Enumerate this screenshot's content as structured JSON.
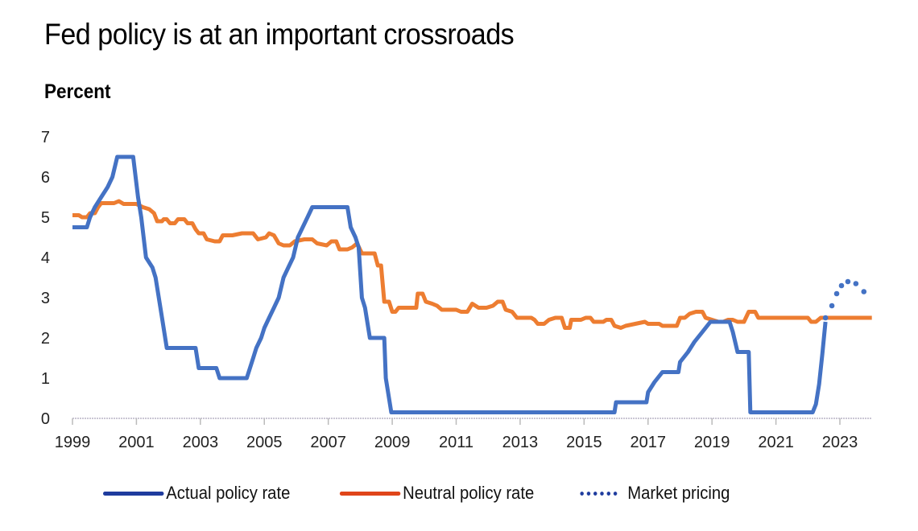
{
  "chart_data": {
    "type": "line",
    "title": "Fed policy is at an important crossroads",
    "ylabel": "Percent",
    "xlabel": "",
    "xlim": [
      1999,
      2024
    ],
    "ylim": [
      0,
      7
    ],
    "y_ticks": [
      "0",
      "1",
      "2",
      "3",
      "4",
      "5",
      "6",
      "7"
    ],
    "x_ticks": [
      "1999",
      "2001",
      "2003",
      "2005",
      "2007",
      "2009",
      "2011",
      "2013",
      "2015",
      "2017",
      "2019",
      "2021",
      "2023"
    ],
    "grid": false,
    "legend_position": "bottom",
    "series": [
      {
        "name": "Actual policy rate",
        "color": "#4472c4",
        "style": "solid",
        "points": [
          [
            1999.0,
            4.75
          ],
          [
            1999.45,
            4.75
          ],
          [
            1999.55,
            5.0
          ],
          [
            1999.7,
            5.25
          ],
          [
            1999.9,
            5.5
          ],
          [
            2000.1,
            5.75
          ],
          [
            2000.25,
            6.0
          ],
          [
            2000.4,
            6.5
          ],
          [
            2000.9,
            6.5
          ],
          [
            2001.05,
            5.5
          ],
          [
            2001.15,
            5.0
          ],
          [
            2001.3,
            4.0
          ],
          [
            2001.5,
            3.75
          ],
          [
            2001.6,
            3.5
          ],
          [
            2001.7,
            3.0
          ],
          [
            2001.8,
            2.5
          ],
          [
            2001.95,
            1.75
          ],
          [
            2002.85,
            1.75
          ],
          [
            2002.95,
            1.25
          ],
          [
            2003.5,
            1.25
          ],
          [
            2003.6,
            1.0
          ],
          [
            2004.45,
            1.0
          ],
          [
            2004.55,
            1.25
          ],
          [
            2004.65,
            1.5
          ],
          [
            2004.75,
            1.75
          ],
          [
            2004.9,
            2.0
          ],
          [
            2005.0,
            2.25
          ],
          [
            2005.15,
            2.5
          ],
          [
            2005.3,
            2.75
          ],
          [
            2005.45,
            3.0
          ],
          [
            2005.6,
            3.5
          ],
          [
            2005.75,
            3.75
          ],
          [
            2005.9,
            4.0
          ],
          [
            2006.05,
            4.5
          ],
          [
            2006.2,
            4.75
          ],
          [
            2006.35,
            5.0
          ],
          [
            2006.5,
            5.25
          ],
          [
            2007.6,
            5.25
          ],
          [
            2007.7,
            4.75
          ],
          [
            2007.85,
            4.5
          ],
          [
            2007.95,
            4.25
          ],
          [
            2008.05,
            3.0
          ],
          [
            2008.15,
            2.75
          ],
          [
            2008.3,
            2.0
          ],
          [
            2008.75,
            2.0
          ],
          [
            2008.8,
            1.0
          ],
          [
            2008.9,
            0.5
          ],
          [
            2008.97,
            0.15
          ],
          [
            2015.95,
            0.15
          ],
          [
            2016.0,
            0.4
          ],
          [
            2016.95,
            0.4
          ],
          [
            2017.0,
            0.65
          ],
          [
            2017.2,
            0.9
          ],
          [
            2017.45,
            1.15
          ],
          [
            2017.95,
            1.15
          ],
          [
            2018.0,
            1.4
          ],
          [
            2018.25,
            1.65
          ],
          [
            2018.45,
            1.9
          ],
          [
            2018.7,
            2.15
          ],
          [
            2018.95,
            2.4
          ],
          [
            2019.55,
            2.4
          ],
          [
            2019.65,
            2.15
          ],
          [
            2019.8,
            1.65
          ],
          [
            2020.15,
            1.65
          ],
          [
            2020.2,
            0.15
          ],
          [
            2022.15,
            0.15
          ],
          [
            2022.25,
            0.35
          ],
          [
            2022.35,
            0.85
          ],
          [
            2022.45,
            1.6
          ],
          [
            2022.55,
            2.4
          ]
        ]
      },
      {
        "name": "Neutral policy rate",
        "color": "#ed7d31",
        "style": "solid",
        "points": [
          [
            1999.0,
            5.05
          ],
          [
            1999.2,
            5.05
          ],
          [
            1999.3,
            5.0
          ],
          [
            1999.45,
            5.0
          ],
          [
            1999.55,
            5.1
          ],
          [
            1999.7,
            5.1
          ],
          [
            1999.8,
            5.25
          ],
          [
            1999.9,
            5.35
          ],
          [
            2000.3,
            5.35
          ],
          [
            2000.45,
            5.4
          ],
          [
            2000.6,
            5.33
          ],
          [
            2001.0,
            5.33
          ],
          [
            2001.2,
            5.25
          ],
          [
            2001.4,
            5.2
          ],
          [
            2001.55,
            5.1
          ],
          [
            2001.65,
            4.9
          ],
          [
            2001.8,
            4.9
          ],
          [
            2001.85,
            4.95
          ],
          [
            2001.95,
            4.95
          ],
          [
            2002.05,
            4.85
          ],
          [
            2002.2,
            4.85
          ],
          [
            2002.3,
            4.95
          ],
          [
            2002.5,
            4.95
          ],
          [
            2002.6,
            4.85
          ],
          [
            2002.75,
            4.85
          ],
          [
            2002.85,
            4.7
          ],
          [
            2002.95,
            4.6
          ],
          [
            2003.1,
            4.6
          ],
          [
            2003.2,
            4.45
          ],
          [
            2003.45,
            4.4
          ],
          [
            2003.6,
            4.4
          ],
          [
            2003.7,
            4.55
          ],
          [
            2004.0,
            4.55
          ],
          [
            2004.3,
            4.6
          ],
          [
            2004.65,
            4.6
          ],
          [
            2004.8,
            4.45
          ],
          [
            2005.05,
            4.5
          ],
          [
            2005.15,
            4.6
          ],
          [
            2005.3,
            4.55
          ],
          [
            2005.45,
            4.35
          ],
          [
            2005.6,
            4.3
          ],
          [
            2005.8,
            4.3
          ],
          [
            2005.95,
            4.4
          ],
          [
            2006.25,
            4.45
          ],
          [
            2006.5,
            4.45
          ],
          [
            2006.65,
            4.35
          ],
          [
            2006.95,
            4.3
          ],
          [
            2007.1,
            4.4
          ],
          [
            2007.25,
            4.4
          ],
          [
            2007.35,
            4.2
          ],
          [
            2007.6,
            4.2
          ],
          [
            2007.75,
            4.25
          ],
          [
            2007.9,
            4.35
          ],
          [
            2008.05,
            4.1
          ],
          [
            2008.45,
            4.1
          ],
          [
            2008.55,
            3.8
          ],
          [
            2008.65,
            3.8
          ],
          [
            2008.75,
            2.9
          ],
          [
            2008.9,
            2.9
          ],
          [
            2009.0,
            2.65
          ],
          [
            2009.1,
            2.65
          ],
          [
            2009.2,
            2.75
          ],
          [
            2009.75,
            2.75
          ],
          [
            2009.8,
            3.1
          ],
          [
            2009.95,
            3.1
          ],
          [
            2010.05,
            2.9
          ],
          [
            2010.25,
            2.85
          ],
          [
            2010.4,
            2.8
          ],
          [
            2010.55,
            2.7
          ],
          [
            2011.0,
            2.7
          ],
          [
            2011.15,
            2.65
          ],
          [
            2011.35,
            2.65
          ],
          [
            2011.5,
            2.85
          ],
          [
            2011.7,
            2.75
          ],
          [
            2011.95,
            2.75
          ],
          [
            2012.15,
            2.8
          ],
          [
            2012.3,
            2.9
          ],
          [
            2012.45,
            2.9
          ],
          [
            2012.55,
            2.7
          ],
          [
            2012.75,
            2.65
          ],
          [
            2012.9,
            2.5
          ],
          [
            2013.35,
            2.5
          ],
          [
            2013.45,
            2.45
          ],
          [
            2013.55,
            2.35
          ],
          [
            2013.75,
            2.35
          ],
          [
            2013.9,
            2.45
          ],
          [
            2014.1,
            2.5
          ],
          [
            2014.3,
            2.5
          ],
          [
            2014.4,
            2.25
          ],
          [
            2014.55,
            2.25
          ],
          [
            2014.6,
            2.45
          ],
          [
            2014.9,
            2.45
          ],
          [
            2015.05,
            2.5
          ],
          [
            2015.2,
            2.5
          ],
          [
            2015.3,
            2.4
          ],
          [
            2015.6,
            2.4
          ],
          [
            2015.7,
            2.45
          ],
          [
            2015.85,
            2.45
          ],
          [
            2015.95,
            2.3
          ],
          [
            2016.15,
            2.25
          ],
          [
            2016.3,
            2.3
          ],
          [
            2016.6,
            2.35
          ],
          [
            2016.9,
            2.4
          ],
          [
            2017.0,
            2.35
          ],
          [
            2017.35,
            2.35
          ],
          [
            2017.45,
            2.3
          ],
          [
            2017.9,
            2.3
          ],
          [
            2018.0,
            2.5
          ],
          [
            2018.15,
            2.5
          ],
          [
            2018.3,
            2.6
          ],
          [
            2018.5,
            2.65
          ],
          [
            2018.7,
            2.65
          ],
          [
            2018.8,
            2.5
          ],
          [
            2019.0,
            2.45
          ],
          [
            2019.2,
            2.4
          ],
          [
            2019.35,
            2.4
          ],
          [
            2019.5,
            2.45
          ],
          [
            2019.65,
            2.45
          ],
          [
            2019.8,
            2.4
          ],
          [
            2020.0,
            2.4
          ],
          [
            2020.15,
            2.65
          ],
          [
            2020.35,
            2.65
          ],
          [
            2020.45,
            2.5
          ],
          [
            2022.0,
            2.5
          ],
          [
            2022.1,
            2.4
          ],
          [
            2022.25,
            2.4
          ],
          [
            2022.4,
            2.5
          ],
          [
            2024.0,
            2.5
          ]
        ]
      },
      {
        "name": "Market pricing",
        "color": "#4472c4",
        "style": "dotted",
        "points": [
          [
            2022.55,
            2.5
          ],
          [
            2022.75,
            2.8
          ],
          [
            2022.9,
            3.1
          ],
          [
            2023.05,
            3.3
          ],
          [
            2023.25,
            3.4
          ],
          [
            2023.5,
            3.35
          ],
          [
            2023.75,
            3.15
          ]
        ]
      }
    ]
  },
  "legend": [
    {
      "label": "Actual policy rate",
      "color": "#1f3c9e",
      "style": "solid"
    },
    {
      "label": "Neutral policy rate",
      "color": "#e0451a",
      "style": "solid"
    },
    {
      "label": "Market pricing",
      "color": "#1f3c9e",
      "style": "dotted"
    }
  ]
}
